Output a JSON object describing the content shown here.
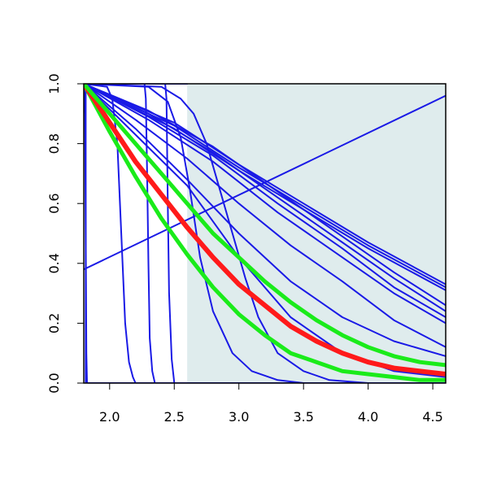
{
  "chart_data": {
    "type": "line",
    "title": "",
    "xlabel": "",
    "ylabel": "",
    "xlim": [
      1.8,
      4.6
    ],
    "ylim": [
      0.0,
      1.0
    ],
    "grid": false,
    "shaded_region": {
      "x_from": 2.6,
      "x_to": 4.6,
      "color": "#dfeced"
    },
    "x_ticks": [
      {
        "value": 2.0,
        "label": "2.0"
      },
      {
        "value": 2.5,
        "label": "2.5"
      },
      {
        "value": 3.0,
        "label": "3.0"
      },
      {
        "value": 3.5,
        "label": "3.5"
      },
      {
        "value": 4.0,
        "label": "4.0"
      },
      {
        "value": 4.5,
        "label": "4.5"
      }
    ],
    "y_ticks": [
      {
        "value": 0.0,
        "label": "0.0"
      },
      {
        "value": 0.2,
        "label": "0.2"
      },
      {
        "value": 0.4,
        "label": "0.4"
      },
      {
        "value": 0.6,
        "label": "0.6"
      },
      {
        "value": 0.8,
        "label": "0.8"
      },
      {
        "value": 1.0,
        "label": "1.0"
      }
    ],
    "series": [
      {
        "id": "blue-steep-1",
        "color": "#1a1ae6",
        "width": 2,
        "points": [
          [
            1.8,
            1.0
          ],
          [
            1.81,
            0.9
          ],
          [
            1.815,
            0.5
          ],
          [
            1.82,
            0.1
          ],
          [
            1.825,
            0.0
          ],
          [
            4.6,
            0.0
          ]
        ]
      },
      {
        "id": "blue-steep-2",
        "color": "#1a1ae6",
        "width": 2,
        "points": [
          [
            1.8,
            1.0
          ],
          [
            1.98,
            0.99
          ],
          [
            2.02,
            0.95
          ],
          [
            2.06,
            0.8
          ],
          [
            2.09,
            0.5
          ],
          [
            2.12,
            0.2
          ],
          [
            2.15,
            0.07
          ],
          [
            2.18,
            0.02
          ],
          [
            2.2,
            0.0
          ],
          [
            4.6,
            0.0
          ]
        ]
      },
      {
        "id": "blue-steep-3",
        "color": "#1a1ae6",
        "width": 2,
        "points": [
          [
            1.8,
            1.0
          ],
          [
            2.27,
            1.0
          ],
          [
            2.28,
            0.95
          ],
          [
            2.29,
            0.7
          ],
          [
            2.3,
            0.4
          ],
          [
            2.31,
            0.15
          ],
          [
            2.33,
            0.04
          ],
          [
            2.35,
            0.0
          ],
          [
            4.6,
            0.0
          ]
        ]
      },
      {
        "id": "blue-steep-4",
        "color": "#1a1ae6",
        "width": 2,
        "points": [
          [
            1.8,
            1.0
          ],
          [
            2.43,
            1.0
          ],
          [
            2.44,
            0.95
          ],
          [
            2.45,
            0.6
          ],
          [
            2.46,
            0.3
          ],
          [
            2.48,
            0.08
          ],
          [
            2.5,
            0.0
          ],
          [
            4.6,
            0.0
          ]
        ]
      },
      {
        "id": "blue-sigmoid-1",
        "color": "#1a1ae6",
        "width": 2,
        "points": [
          [
            1.8,
            1.0
          ],
          [
            2.3,
            0.99
          ],
          [
            2.45,
            0.94
          ],
          [
            2.55,
            0.82
          ],
          [
            2.62,
            0.65
          ],
          [
            2.7,
            0.42
          ],
          [
            2.8,
            0.24
          ],
          [
            2.95,
            0.1
          ],
          [
            3.1,
            0.04
          ],
          [
            3.3,
            0.01
          ],
          [
            3.5,
            0.0
          ],
          [
            4.6,
            0.0
          ]
        ]
      },
      {
        "id": "blue-sigmoid-2",
        "color": "#1a1ae6",
        "width": 2,
        "points": [
          [
            1.8,
            1.0
          ],
          [
            2.4,
            0.99
          ],
          [
            2.55,
            0.95
          ],
          [
            2.65,
            0.9
          ],
          [
            2.75,
            0.8
          ],
          [
            2.85,
            0.65
          ],
          [
            2.95,
            0.5
          ],
          [
            3.05,
            0.35
          ],
          [
            3.15,
            0.22
          ],
          [
            3.3,
            0.1
          ],
          [
            3.5,
            0.04
          ],
          [
            3.7,
            0.01
          ],
          [
            4.0,
            0.0
          ],
          [
            4.6,
            0.0
          ]
        ]
      },
      {
        "id": "blue-gradual-1",
        "color": "#1a1ae6",
        "width": 2,
        "points": [
          [
            1.8,
            1.0
          ],
          [
            2.2,
            0.83
          ],
          [
            2.6,
            0.66
          ],
          [
            3.0,
            0.42
          ],
          [
            3.4,
            0.22
          ],
          [
            3.8,
            0.1
          ],
          [
            4.2,
            0.04
          ],
          [
            4.6,
            0.02
          ]
        ]
      },
      {
        "id": "blue-gradual-2",
        "color": "#1a1ae6",
        "width": 2,
        "points": [
          [
            1.8,
            1.0
          ],
          [
            2.2,
            0.85
          ],
          [
            2.6,
            0.68
          ],
          [
            3.0,
            0.5
          ],
          [
            3.4,
            0.34
          ],
          [
            3.8,
            0.22
          ],
          [
            4.2,
            0.14
          ],
          [
            4.6,
            0.09
          ]
        ]
      },
      {
        "id": "blue-gradual-3",
        "color": "#1a1ae6",
        "width": 2,
        "points": [
          [
            1.8,
            1.0
          ],
          [
            2.2,
            0.88
          ],
          [
            2.6,
            0.75
          ],
          [
            3.0,
            0.6
          ],
          [
            3.4,
            0.46
          ],
          [
            3.8,
            0.34
          ],
          [
            4.2,
            0.21
          ],
          [
            4.6,
            0.12
          ]
        ]
      },
      {
        "id": "blue-gradual-4",
        "color": "#1a1ae6",
        "width": 2,
        "points": [
          [
            1.8,
            1.0
          ],
          [
            2.3,
            0.88
          ],
          [
            2.8,
            0.74
          ],
          [
            3.3,
            0.57
          ],
          [
            3.8,
            0.42
          ],
          [
            4.2,
            0.3
          ],
          [
            4.6,
            0.2
          ]
        ]
      },
      {
        "id": "blue-gradual-5",
        "color": "#1a1ae6",
        "width": 2,
        "points": [
          [
            1.8,
            1.0
          ],
          [
            2.3,
            0.89
          ],
          [
            2.8,
            0.76
          ],
          [
            3.3,
            0.6
          ],
          [
            3.8,
            0.45
          ],
          [
            4.2,
            0.32
          ],
          [
            4.6,
            0.22
          ]
        ]
      },
      {
        "id": "blue-gradual-6",
        "color": "#1a1ae6",
        "width": 2,
        "points": [
          [
            1.8,
            1.0
          ],
          [
            2.3,
            0.9
          ],
          [
            2.8,
            0.77
          ],
          [
            3.3,
            0.62
          ],
          [
            3.8,
            0.47
          ],
          [
            4.2,
            0.35
          ],
          [
            4.6,
            0.24
          ]
        ]
      },
      {
        "id": "blue-gradual-7",
        "color": "#1a1ae6",
        "width": 2,
        "points": [
          [
            1.8,
            1.0
          ],
          [
            2.3,
            0.91
          ],
          [
            2.8,
            0.79
          ],
          [
            3.3,
            0.64
          ],
          [
            3.8,
            0.49
          ],
          [
            4.2,
            0.37
          ],
          [
            4.6,
            0.26
          ]
        ]
      },
      {
        "id": "blue-near-linear-1",
        "color": "#1a1ae6",
        "width": 2,
        "points": [
          [
            1.8,
            1.0
          ],
          [
            2.5,
            0.85
          ],
          [
            3.0,
            0.71
          ],
          [
            3.5,
            0.58
          ],
          [
            4.0,
            0.45
          ],
          [
            4.6,
            0.31
          ]
        ]
      },
      {
        "id": "blue-near-linear-2",
        "color": "#1a1ae6",
        "width": 2,
        "points": [
          [
            1.8,
            1.0
          ],
          [
            2.5,
            0.86
          ],
          [
            3.0,
            0.72
          ],
          [
            3.5,
            0.59
          ],
          [
            4.0,
            0.46
          ],
          [
            4.6,
            0.32
          ]
        ]
      },
      {
        "id": "blue-near-linear-3",
        "color": "#1a1ae6",
        "width": 2,
        "points": [
          [
            1.8,
            1.0
          ],
          [
            2.5,
            0.87
          ],
          [
            3.0,
            0.73
          ],
          [
            3.5,
            0.6
          ],
          [
            4.0,
            0.47
          ],
          [
            4.6,
            0.33
          ]
        ]
      },
      {
        "id": "blue-rising-line",
        "color": "#1a1ae6",
        "width": 2,
        "points": [
          [
            1.8,
            0.38
          ],
          [
            4.6,
            0.96
          ]
        ]
      },
      {
        "id": "blue-top-line",
        "color": "#1a1ae6",
        "width": 2,
        "points": [
          [
            1.8,
            1.0
          ],
          [
            2.6,
            1.0
          ]
        ]
      },
      {
        "id": "blue-vertical-line",
        "color": "#1a1ae6",
        "width": 2,
        "points": [
          [
            1.815,
            0.0
          ],
          [
            1.815,
            1.0
          ]
        ]
      },
      {
        "id": "green-lower",
        "color": "#1aeb1a",
        "width": 5,
        "points": [
          [
            1.8,
            1.0
          ],
          [
            2.0,
            0.84
          ],
          [
            2.2,
            0.69
          ],
          [
            2.4,
            0.55
          ],
          [
            2.6,
            0.43
          ],
          [
            2.8,
            0.32
          ],
          [
            3.0,
            0.23
          ],
          [
            3.2,
            0.16
          ],
          [
            3.4,
            0.1
          ],
          [
            3.6,
            0.07
          ],
          [
            3.8,
            0.04
          ],
          [
            4.0,
            0.03
          ],
          [
            4.2,
            0.02
          ],
          [
            4.4,
            0.01
          ],
          [
            4.6,
            0.01
          ]
        ]
      },
      {
        "id": "red-center",
        "color": "#ff1a1a",
        "width": 6,
        "points": [
          [
            1.8,
            1.0
          ],
          [
            2.0,
            0.87
          ],
          [
            2.2,
            0.74
          ],
          [
            2.4,
            0.63
          ],
          [
            2.6,
            0.52
          ],
          [
            2.8,
            0.42
          ],
          [
            3.0,
            0.33
          ],
          [
            3.2,
            0.26
          ],
          [
            3.4,
            0.19
          ],
          [
            3.6,
            0.14
          ],
          [
            3.8,
            0.1
          ],
          [
            4.0,
            0.07
          ],
          [
            4.2,
            0.05
          ],
          [
            4.4,
            0.04
          ],
          [
            4.6,
            0.03
          ]
        ]
      },
      {
        "id": "green-upper",
        "color": "#1aeb1a",
        "width": 5,
        "points": [
          [
            1.8,
            1.0
          ],
          [
            2.0,
            0.9
          ],
          [
            2.2,
            0.8
          ],
          [
            2.4,
            0.7
          ],
          [
            2.6,
            0.6
          ],
          [
            2.8,
            0.5
          ],
          [
            3.0,
            0.42
          ],
          [
            3.2,
            0.34
          ],
          [
            3.4,
            0.27
          ],
          [
            3.6,
            0.21
          ],
          [
            3.8,
            0.16
          ],
          [
            4.0,
            0.12
          ],
          [
            4.2,
            0.09
          ],
          [
            4.4,
            0.07
          ],
          [
            4.6,
            0.06
          ]
        ]
      }
    ]
  }
}
